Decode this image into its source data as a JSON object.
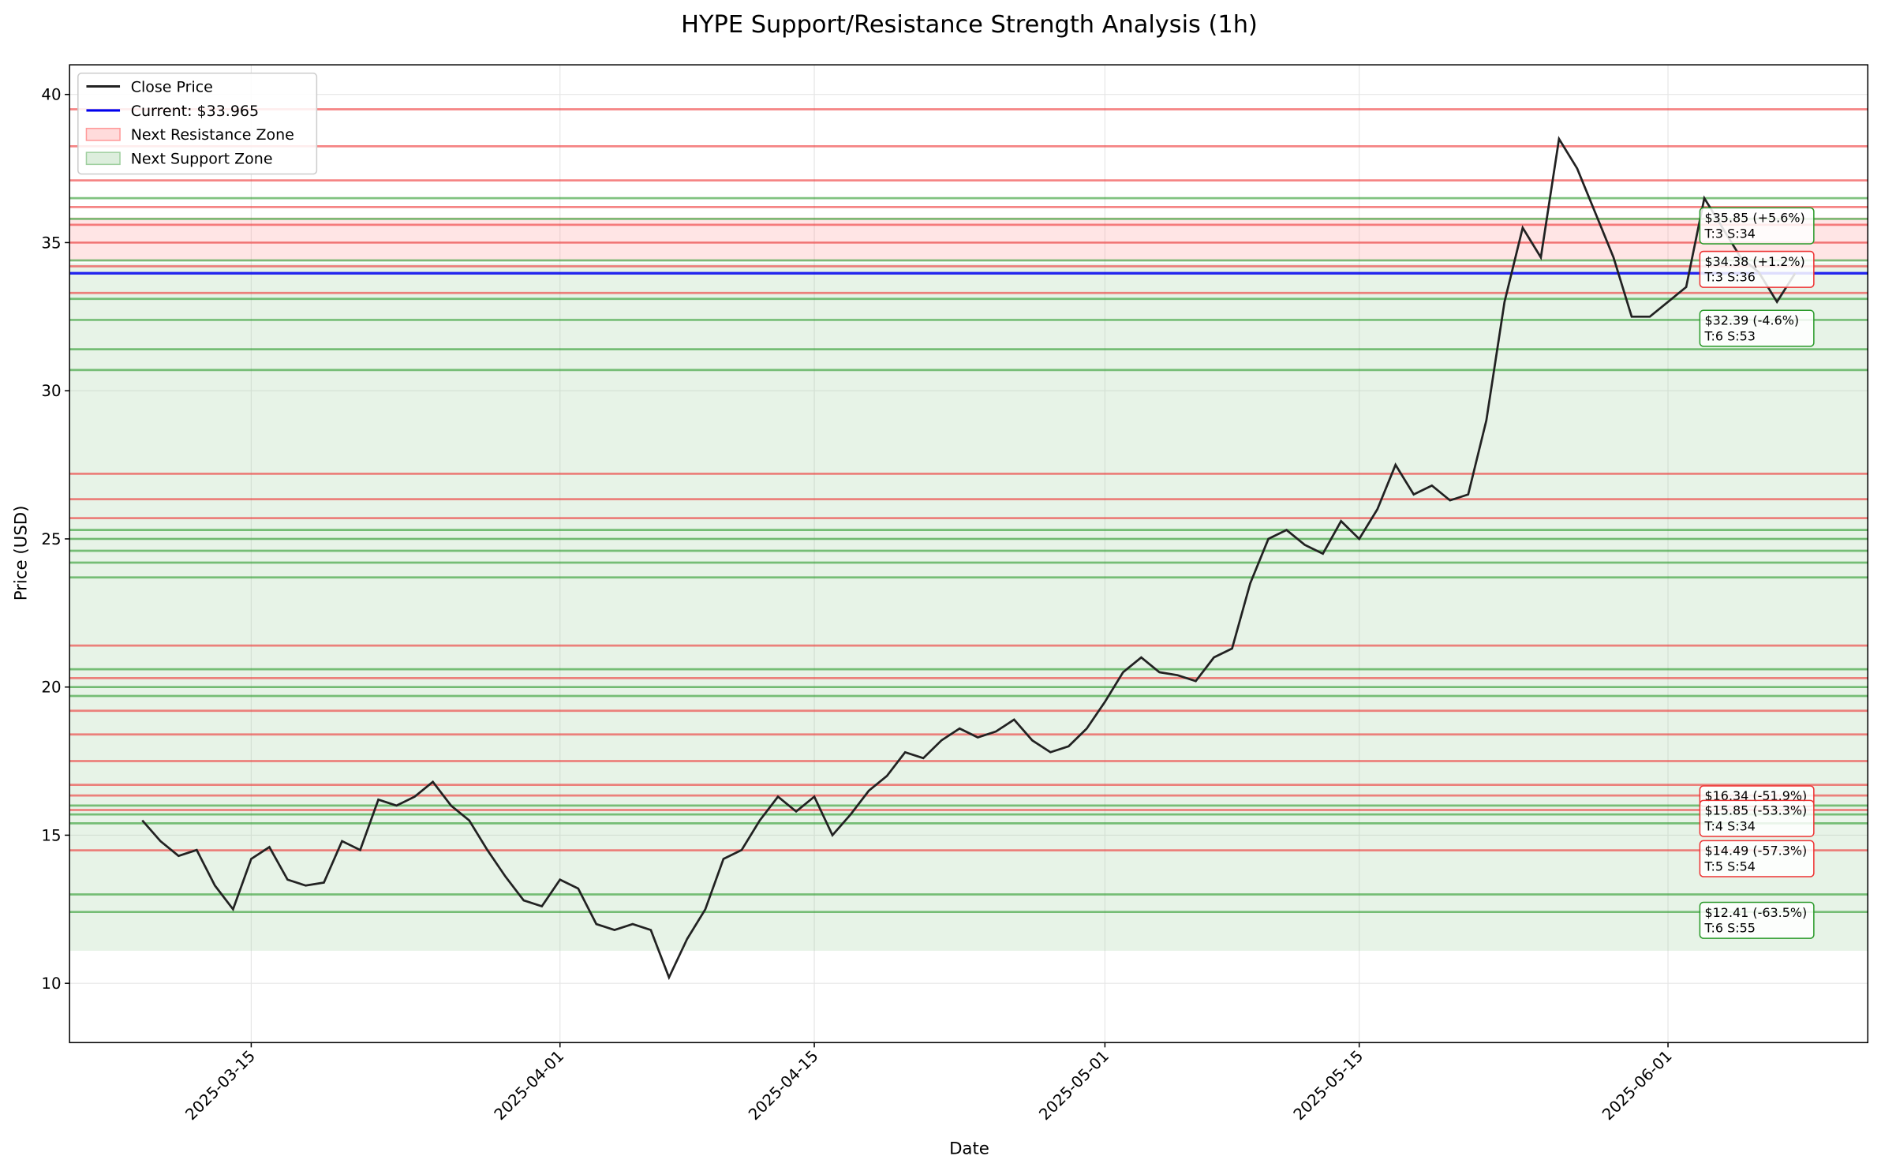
{
  "chart_data": {
    "type": "line",
    "title": "HYPE Support/Resistance Strength Analysis (1h)",
    "x_label": "Date",
    "y_label": "Price (USD)",
    "xlim": [
      "2025-03-05",
      "2025-06-12"
    ],
    "xticks": [
      "2025-03-15",
      "2025-04-01",
      "2025-04-15",
      "2025-05-01",
      "2025-05-15",
      "2025-06-01"
    ],
    "ylim": [
      8,
      41
    ],
    "yticks": [
      10,
      15,
      20,
      25,
      30,
      35,
      40
    ],
    "grid": true,
    "legend": "upper left",
    "series": [
      {
        "name": "Close Price",
        "color": "#222222",
        "x": [
          "2025-03-09",
          "2025-03-10",
          "2025-03-11",
          "2025-03-12",
          "2025-03-13",
          "2025-03-14",
          "2025-03-15",
          "2025-03-16",
          "2025-03-17",
          "2025-03-18",
          "2025-03-19",
          "2025-03-20",
          "2025-03-21",
          "2025-03-22",
          "2025-03-23",
          "2025-03-24",
          "2025-03-25",
          "2025-03-26",
          "2025-03-27",
          "2025-03-28",
          "2025-03-29",
          "2025-03-30",
          "2025-03-31",
          "2025-04-01",
          "2025-04-02",
          "2025-04-03",
          "2025-04-04",
          "2025-04-05",
          "2025-04-06",
          "2025-04-07",
          "2025-04-08",
          "2025-04-09",
          "2025-04-10",
          "2025-04-11",
          "2025-04-12",
          "2025-04-13",
          "2025-04-14",
          "2025-04-15",
          "2025-04-16",
          "2025-04-17",
          "2025-04-18",
          "2025-04-19",
          "2025-04-20",
          "2025-04-21",
          "2025-04-22",
          "2025-04-23",
          "2025-04-24",
          "2025-04-25",
          "2025-04-26",
          "2025-04-27",
          "2025-04-28",
          "2025-04-29",
          "2025-04-30",
          "2025-05-01",
          "2025-05-02",
          "2025-05-03",
          "2025-05-04",
          "2025-05-05",
          "2025-05-06",
          "2025-05-07",
          "2025-05-08",
          "2025-05-09",
          "2025-05-10",
          "2025-05-11",
          "2025-05-12",
          "2025-05-13",
          "2025-05-14",
          "2025-05-15",
          "2025-05-16",
          "2025-05-17",
          "2025-05-18",
          "2025-05-19",
          "2025-05-20",
          "2025-05-21",
          "2025-05-22",
          "2025-05-23",
          "2025-05-24",
          "2025-05-25",
          "2025-05-26",
          "2025-05-27",
          "2025-05-28",
          "2025-05-29",
          "2025-05-30",
          "2025-05-31",
          "2025-06-01",
          "2025-06-02",
          "2025-06-03",
          "2025-06-04",
          "2025-06-05",
          "2025-06-06",
          "2025-06-07",
          "2025-06-08"
        ],
        "values": [
          15.5,
          14.8,
          14.3,
          14.5,
          13.3,
          12.5,
          14.2,
          14.6,
          13.5,
          13.3,
          13.4,
          14.8,
          14.5,
          16.2,
          16.0,
          16.3,
          16.8,
          16.0,
          15.5,
          14.5,
          13.6,
          12.8,
          12.6,
          13.5,
          13.2,
          12.0,
          11.8,
          12.0,
          11.8,
          10.2,
          11.5,
          12.5,
          14.2,
          14.5,
          15.5,
          16.3,
          15.8,
          16.3,
          15.0,
          15.7,
          16.5,
          17.0,
          17.8,
          17.6,
          18.2,
          18.6,
          18.3,
          18.5,
          18.9,
          18.2,
          17.8,
          18.0,
          18.6,
          19.5,
          20.5,
          21.0,
          20.5,
          20.4,
          20.2,
          21.0,
          21.3,
          23.5,
          25.0,
          25.3,
          24.8,
          24.5,
          25.6,
          25.0,
          26.0,
          27.5,
          26.5,
          26.8,
          26.3,
          26.5,
          29.0,
          33.0,
          35.5,
          34.5,
          38.5,
          37.5,
          36.0,
          34.5,
          32.5,
          32.5,
          33.0,
          33.5,
          36.5,
          35.5,
          34.5,
          34.0,
          33.0,
          33.965
        ]
      }
    ],
    "current": {
      "value": 33.965,
      "label": "Current: $33.965",
      "color": "#0000ee"
    },
    "resistance_zone": {
      "name": "Next Resistance Zone",
      "color": "#ff9999",
      "range": [
        34.38,
        35.85
      ]
    },
    "support_zone": {
      "name": "Next Support Zone",
      "color": "#9fcf9f",
      "range": [
        11.1,
        34.3
      ]
    },
    "resistance_levels": {
      "color": "#ee3333",
      "values": [
        39.5,
        38.25,
        37.1,
        36.2,
        35.6,
        35.0,
        34.2,
        33.3,
        27.2,
        26.34,
        25.7,
        21.4,
        20.3,
        19.2,
        18.4,
        17.5,
        16.7,
        16.34,
        15.85,
        14.49
      ]
    },
    "support_levels": {
      "color": "#2a9a2a",
      "values": [
        36.5,
        35.8,
        34.4,
        33.1,
        32.39,
        31.4,
        30.7,
        25.3,
        25.0,
        24.6,
        24.2,
        23.7,
        20.6,
        20.0,
        19.7,
        16.0,
        15.7,
        15.4,
        13.0,
        12.41
      ]
    },
    "annotations": [
      {
        "value": 35.85,
        "lines": [
          "$35.85 (+5.6%)",
          "T:3 S:34"
        ],
        "color": "#2a9a2a"
      },
      {
        "value": 34.38,
        "lines": [
          "$34.38 (+1.2%)",
          "T:3 S:36"
        ],
        "color": "#ee3333"
      },
      {
        "value": 32.39,
        "lines": [
          "$32.39 (-4.6%)",
          "T:6 S:53"
        ],
        "color": "#2a9a2a"
      },
      {
        "value": 16.34,
        "lines": [
          "$16.34 (-51.9%)"
        ],
        "color": "#ee3333"
      },
      {
        "value": 15.85,
        "lines": [
          "$15.85 (-53.3%)",
          "T:4 S:34"
        ],
        "color": "#ee3333"
      },
      {
        "value": 14.49,
        "lines": [
          "$14.49 (-57.3%)",
          "T:5 S:54"
        ],
        "color": "#ee3333"
      },
      {
        "value": 12.41,
        "lines": [
          "$12.41 (-63.5%)",
          "T:6 S:55"
        ],
        "color": "#2a9a2a"
      }
    ]
  }
}
